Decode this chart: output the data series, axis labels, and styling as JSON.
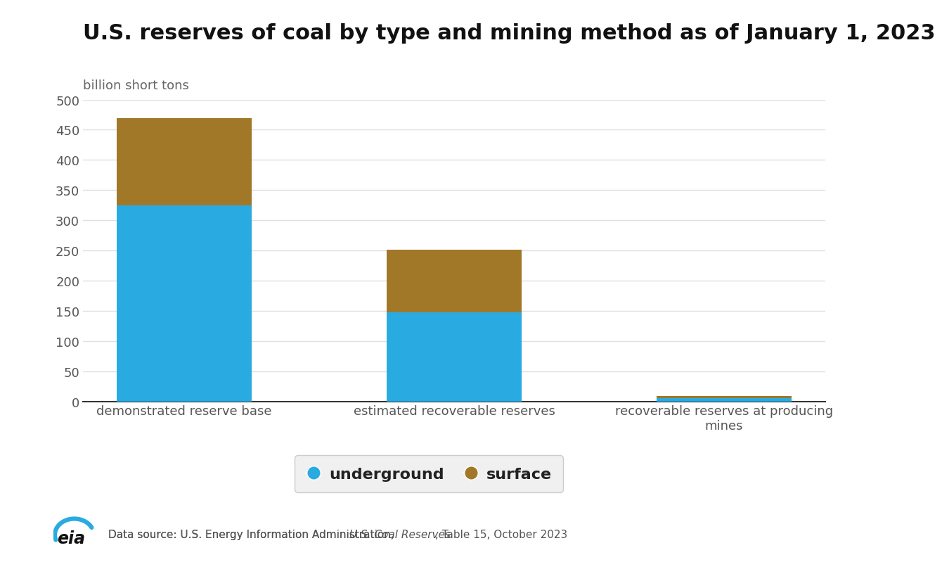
{
  "title": "U.S. reserves of coal by type and mining method as of January 1, 2023",
  "ylabel": "billion short tons",
  "categories": [
    "demonstrated reserve base",
    "estimated recoverable reserves",
    "recoverable reserves at producing\nmines"
  ],
  "underground": [
    325,
    147,
    5
  ],
  "surface": [
    144,
    104,
    4
  ],
  "underground_color": "#29ABE2",
  "surface_color": "#A07828",
  "ylim": [
    0,
    500
  ],
  "yticks": [
    0,
    50,
    100,
    150,
    200,
    250,
    300,
    350,
    400,
    450,
    500
  ],
  "background_color": "#ffffff",
  "grid_color": "#e0e0e0",
  "title_fontsize": 22,
  "ylabel_fontsize": 13,
  "tick_fontsize": 13,
  "xtick_fontsize": 13,
  "legend_labels": [
    "underground",
    "surface"
  ],
  "footer_normal": "Data source: U.S. Energy Information Administration, ",
  "footer_italic": "U.S. Coal Reserves",
  "footer_rest": " , Table 15, October 2023",
  "footer_fontsize": 11,
  "bar_width": 0.5,
  "legend_fontsize": 16,
  "title_color": "#111111",
  "tick_color": "#555555",
  "ylabel_color": "#666666",
  "spine_color": "#333333",
  "legend_edge_color": "#cccccc",
  "legend_face_color": "#f0f0f0"
}
